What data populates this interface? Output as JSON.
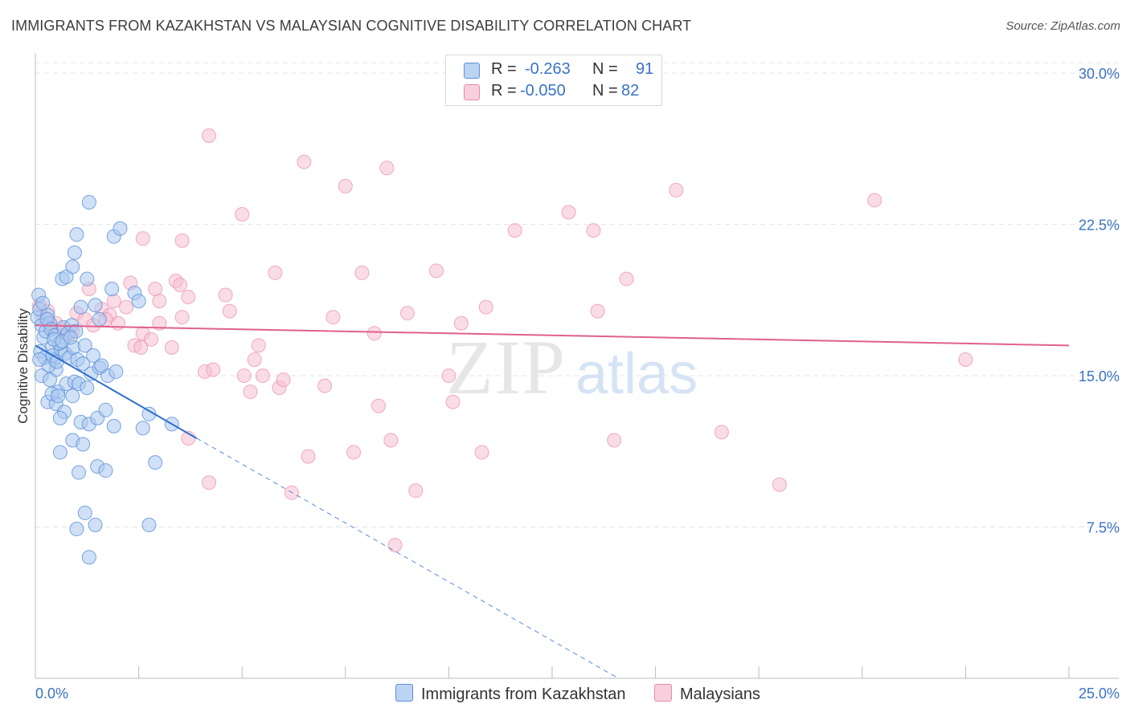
{
  "title": "IMMIGRANTS FROM KAZAKHSTAN VS MALAYSIAN COGNITIVE DISABILITY CORRELATION CHART",
  "source": "Source: ZipAtlas.com",
  "watermark": {
    "zip": "ZIP",
    "atlas": "atlas"
  },
  "legend": {
    "rows": [
      {
        "r_label": "R =",
        "r_value": "-0.263",
        "n_label": "N =",
        "n_value": "91"
      },
      {
        "r_label": "R =",
        "r_value": "-0.050",
        "n_label": "N =",
        "n_value": "82"
      }
    ]
  },
  "colors": {
    "blue_fill": "#a9c8f0",
    "blue_stroke": "#5a8fd6",
    "blue_line": "#2e6fcf",
    "pink_fill": "#f6c0d1",
    "pink_stroke": "#e98aab",
    "pink_line": "#e0608e",
    "grid": "#e3e3e3",
    "axis_label": "#3a72c4"
  },
  "chart_data": {
    "type": "scatter",
    "title": "IMMIGRANTS FROM KAZAKHSTAN VS MALAYSIAN COGNITIVE DISABILITY CORRELATION CHART",
    "xlabel": "",
    "ylabel": "Cognitive Disability",
    "xlim": [
      0,
      25
    ],
    "ylim": [
      0,
      31
    ],
    "x_tick_labels": [
      "0.0%",
      "25.0%"
    ],
    "y_ticks": [
      7.5,
      15.0,
      22.5,
      30.0
    ],
    "y_tick_labels": [
      "7.5%",
      "15.0%",
      "22.5%",
      "30.0%"
    ],
    "grid": true,
    "series": [
      {
        "name": "Immigrants from Kazakhstan",
        "r": -0.263,
        "n": 91,
        "trend": {
          "x": [
            0.0,
            3.9
          ],
          "y": [
            16.5,
            11.9
          ]
        },
        "trend_extension": {
          "x": [
            3.9,
            14.1
          ],
          "y": [
            11.9,
            0.0
          ]
        },
        "points": [
          [
            0.05,
            17.9
          ],
          [
            0.1,
            18.3
          ],
          [
            0.15,
            17.5
          ],
          [
            0.2,
            16.9
          ],
          [
            0.25,
            17.2
          ],
          [
            0.3,
            18.0
          ],
          [
            0.35,
            17.6
          ],
          [
            0.4,
            16.4
          ],
          [
            0.45,
            15.8
          ],
          [
            0.5,
            15.3
          ],
          [
            0.12,
            16.2
          ],
          [
            0.22,
            15.9
          ],
          [
            0.32,
            15.5
          ],
          [
            0.42,
            16.0
          ],
          [
            0.52,
            15.7
          ],
          [
            0.62,
            16.3
          ],
          [
            0.72,
            16.1
          ],
          [
            0.82,
            15.9
          ],
          [
            0.92,
            16.4
          ],
          [
            1.02,
            15.8
          ],
          [
            0.08,
            19.0
          ],
          [
            0.18,
            18.6
          ],
          [
            0.28,
            17.8
          ],
          [
            0.38,
            17.3
          ],
          [
            0.48,
            17.0
          ],
          [
            0.58,
            16.6
          ],
          [
            0.68,
            17.4
          ],
          [
            0.78,
            17.1
          ],
          [
            0.88,
            17.5
          ],
          [
            0.98,
            17.2
          ],
          [
            0.15,
            15.0
          ],
          [
            0.35,
            14.8
          ],
          [
            0.55,
            14.2
          ],
          [
            0.75,
            14.6
          ],
          [
            0.95,
            14.7
          ],
          [
            1.15,
            15.6
          ],
          [
            1.35,
            15.1
          ],
          [
            1.55,
            15.4
          ],
          [
            1.75,
            15.0
          ],
          [
            1.95,
            15.2
          ],
          [
            0.3,
            13.7
          ],
          [
            0.5,
            13.6
          ],
          [
            0.7,
            13.2
          ],
          [
            0.9,
            14.0
          ],
          [
            1.1,
            12.7
          ],
          [
            1.3,
            12.6
          ],
          [
            1.5,
            12.9
          ],
          [
            1.7,
            13.3
          ],
          [
            1.9,
            12.5
          ],
          [
            0.6,
            12.9
          ],
          [
            0.65,
            19.8
          ],
          [
            0.75,
            19.9
          ],
          [
            0.9,
            20.4
          ],
          [
            0.95,
            21.1
          ],
          [
            1.0,
            22.0
          ],
          [
            1.25,
            19.8
          ],
          [
            1.3,
            23.6
          ],
          [
            1.45,
            18.5
          ],
          [
            1.55,
            17.8
          ],
          [
            1.85,
            19.3
          ],
          [
            1.9,
            21.9
          ],
          [
            2.05,
            22.3
          ],
          [
            2.4,
            19.1
          ],
          [
            2.5,
            18.7
          ],
          [
            1.1,
            18.4
          ],
          [
            1.2,
            16.5
          ],
          [
            1.4,
            16.0
          ],
          [
            1.6,
            15.5
          ],
          [
            0.6,
            11.2
          ],
          [
            0.9,
            11.8
          ],
          [
            1.15,
            11.6
          ],
          [
            1.5,
            10.5
          ],
          [
            1.7,
            10.3
          ],
          [
            1.05,
            10.2
          ],
          [
            2.9,
            10.7
          ],
          [
            3.3,
            12.6
          ],
          [
            2.6,
            12.4
          ],
          [
            2.75,
            13.1
          ],
          [
            1.2,
            8.2
          ],
          [
            1.45,
            7.6
          ],
          [
            1.0,
            7.4
          ],
          [
            2.75,
            7.6
          ],
          [
            1.3,
            6.0
          ],
          [
            0.4,
            14.1
          ],
          [
            0.55,
            14.0
          ],
          [
            1.05,
            14.6
          ],
          [
            1.25,
            14.4
          ],
          [
            0.45,
            16.8
          ],
          [
            0.65,
            16.7
          ],
          [
            0.85,
            16.9
          ],
          [
            0.1,
            15.8
          ]
        ]
      },
      {
        "name": "Malaysians",
        "r": -0.05,
        "n": 82,
        "trend": {
          "x": [
            0.0,
            25.0
          ],
          "y": [
            17.5,
            16.5
          ]
        },
        "points": [
          [
            0.1,
            18.5
          ],
          [
            0.2,
            17.9
          ],
          [
            0.3,
            18.2
          ],
          [
            0.4,
            17.4
          ],
          [
            0.5,
            17.6
          ],
          [
            0.6,
            17.1
          ],
          [
            0.7,
            17.3
          ],
          [
            0.8,
            17.0
          ],
          [
            0.9,
            17.2
          ],
          [
            1.0,
            18.1
          ],
          [
            1.2,
            17.8
          ],
          [
            1.4,
            17.5
          ],
          [
            1.6,
            18.3
          ],
          [
            1.8,
            18.0
          ],
          [
            2.0,
            17.6
          ],
          [
            2.2,
            18.4
          ],
          [
            2.4,
            16.5
          ],
          [
            2.6,
            17.1
          ],
          [
            2.8,
            16.8
          ],
          [
            3.0,
            17.6
          ],
          [
            1.3,
            19.3
          ],
          [
            1.7,
            17.8
          ],
          [
            1.9,
            18.7
          ],
          [
            2.3,
            19.6
          ],
          [
            2.9,
            19.3
          ],
          [
            3.0,
            18.7
          ],
          [
            3.4,
            19.7
          ],
          [
            3.5,
            19.5
          ],
          [
            3.7,
            18.9
          ],
          [
            3.55,
            17.9
          ],
          [
            3.3,
            16.4
          ],
          [
            2.55,
            16.4
          ],
          [
            2.6,
            21.8
          ],
          [
            3.55,
            21.7
          ],
          [
            4.1,
            15.2
          ],
          [
            4.3,
            15.3
          ],
          [
            4.6,
            19.0
          ],
          [
            4.7,
            18.2
          ],
          [
            5.0,
            23.0
          ],
          [
            5.05,
            15.0
          ],
          [
            5.2,
            14.2
          ],
          [
            5.3,
            15.8
          ],
          [
            5.4,
            16.5
          ],
          [
            5.5,
            15.0
          ],
          [
            5.8,
            20.1
          ],
          [
            5.9,
            14.4
          ],
          [
            6.0,
            14.8
          ],
          [
            6.2,
            9.2
          ],
          [
            6.6,
            11.0
          ],
          [
            6.5,
            25.6
          ],
          [
            7.0,
            14.5
          ],
          [
            7.2,
            17.9
          ],
          [
            7.5,
            24.4
          ],
          [
            7.7,
            11.2
          ],
          [
            7.9,
            20.1
          ],
          [
            8.2,
            17.1
          ],
          [
            8.3,
            13.5
          ],
          [
            8.5,
            25.3
          ],
          [
            8.6,
            11.8
          ],
          [
            9.0,
            18.1
          ],
          [
            9.2,
            9.3
          ],
          [
            9.7,
            20.2
          ],
          [
            10.0,
            15.0
          ],
          [
            10.1,
            13.7
          ],
          [
            10.3,
            17.6
          ],
          [
            10.8,
            11.2
          ],
          [
            10.9,
            18.4
          ],
          [
            11.6,
            22.2
          ],
          [
            12.9,
            23.1
          ],
          [
            13.5,
            22.2
          ],
          [
            13.6,
            18.2
          ],
          [
            14.0,
            11.8
          ],
          [
            14.3,
            19.8
          ],
          [
            15.5,
            24.2
          ],
          [
            16.6,
            12.2
          ],
          [
            18.0,
            9.6
          ],
          [
            20.3,
            23.7
          ],
          [
            22.5,
            15.8
          ],
          [
            8.7,
            6.6
          ],
          [
            4.2,
            9.7
          ],
          [
            4.2,
            26.9
          ],
          [
            3.7,
            11.9
          ]
        ]
      }
    ]
  },
  "bottom_legend": [
    "Immigrants from Kazakhstan",
    "Malaysians"
  ]
}
